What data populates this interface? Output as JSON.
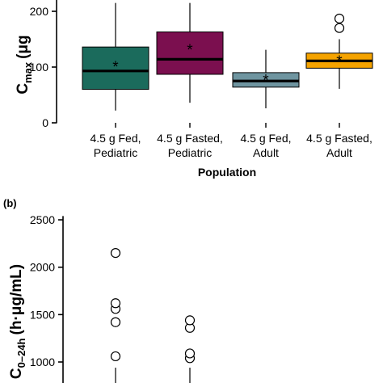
{
  "chart_data": [
    {
      "panel_label": "",
      "type": "box",
      "ylabel": "C",
      "ylabel_sub": "max",
      "ylabel_unit": "(μg",
      "xlabel": "Population",
      "yticks": [
        0,
        100,
        200
      ],
      "ylim": [
        0,
        215
      ],
      "categories": [
        {
          "line1": "4.5 g Fed,",
          "line2": "Pediatric",
          "color": "#1b6b5c",
          "whisker_low": 22,
          "q1": 60,
          "median": 93,
          "mean": 103,
          "q3": 136,
          "whisker_high": 215,
          "outliers": []
        },
        {
          "line1": "4.5 g Fasted,",
          "line2": "Pediatric",
          "color": "#7b0f4f",
          "whisker_low": 36,
          "q1": 87,
          "median": 114,
          "mean": 133,
          "q3": 163,
          "whisker_high": 215,
          "outliers": []
        },
        {
          "line1": "4.5 g Fed,",
          "line2": "Adult",
          "color": "#6f95a0",
          "whisker_low": 26,
          "q1": 64,
          "median": 75,
          "mean": 79,
          "q3": 90,
          "whisker_high": 131,
          "outliers": []
        },
        {
          "line1": "4.5 g Fasted,",
          "line2": "Adult",
          "color": "#f5a300",
          "whisker_low": 61,
          "q1": 98,
          "median": 111,
          "mean": 113,
          "q3": 125,
          "whisker_high": 150,
          "outliers": [
            170,
            187
          ]
        }
      ]
    },
    {
      "panel_label": "(b)",
      "type": "box",
      "ylabel": "C",
      "ylabel_sub": "0–24h",
      "ylabel_unit": "(h·μg/mL)",
      "yticks": [
        1000,
        1500,
        2000,
        2500
      ],
      "ylim": [
        920,
        2580
      ],
      "categories": [
        {
          "whisker_high": 940,
          "outliers": [
            1060,
            1420,
            1560,
            1620,
            2150
          ]
        },
        {
          "whisker_high": 940,
          "outliers": [
            1040,
            1090,
            1360,
            1440
          ]
        }
      ]
    }
  ]
}
